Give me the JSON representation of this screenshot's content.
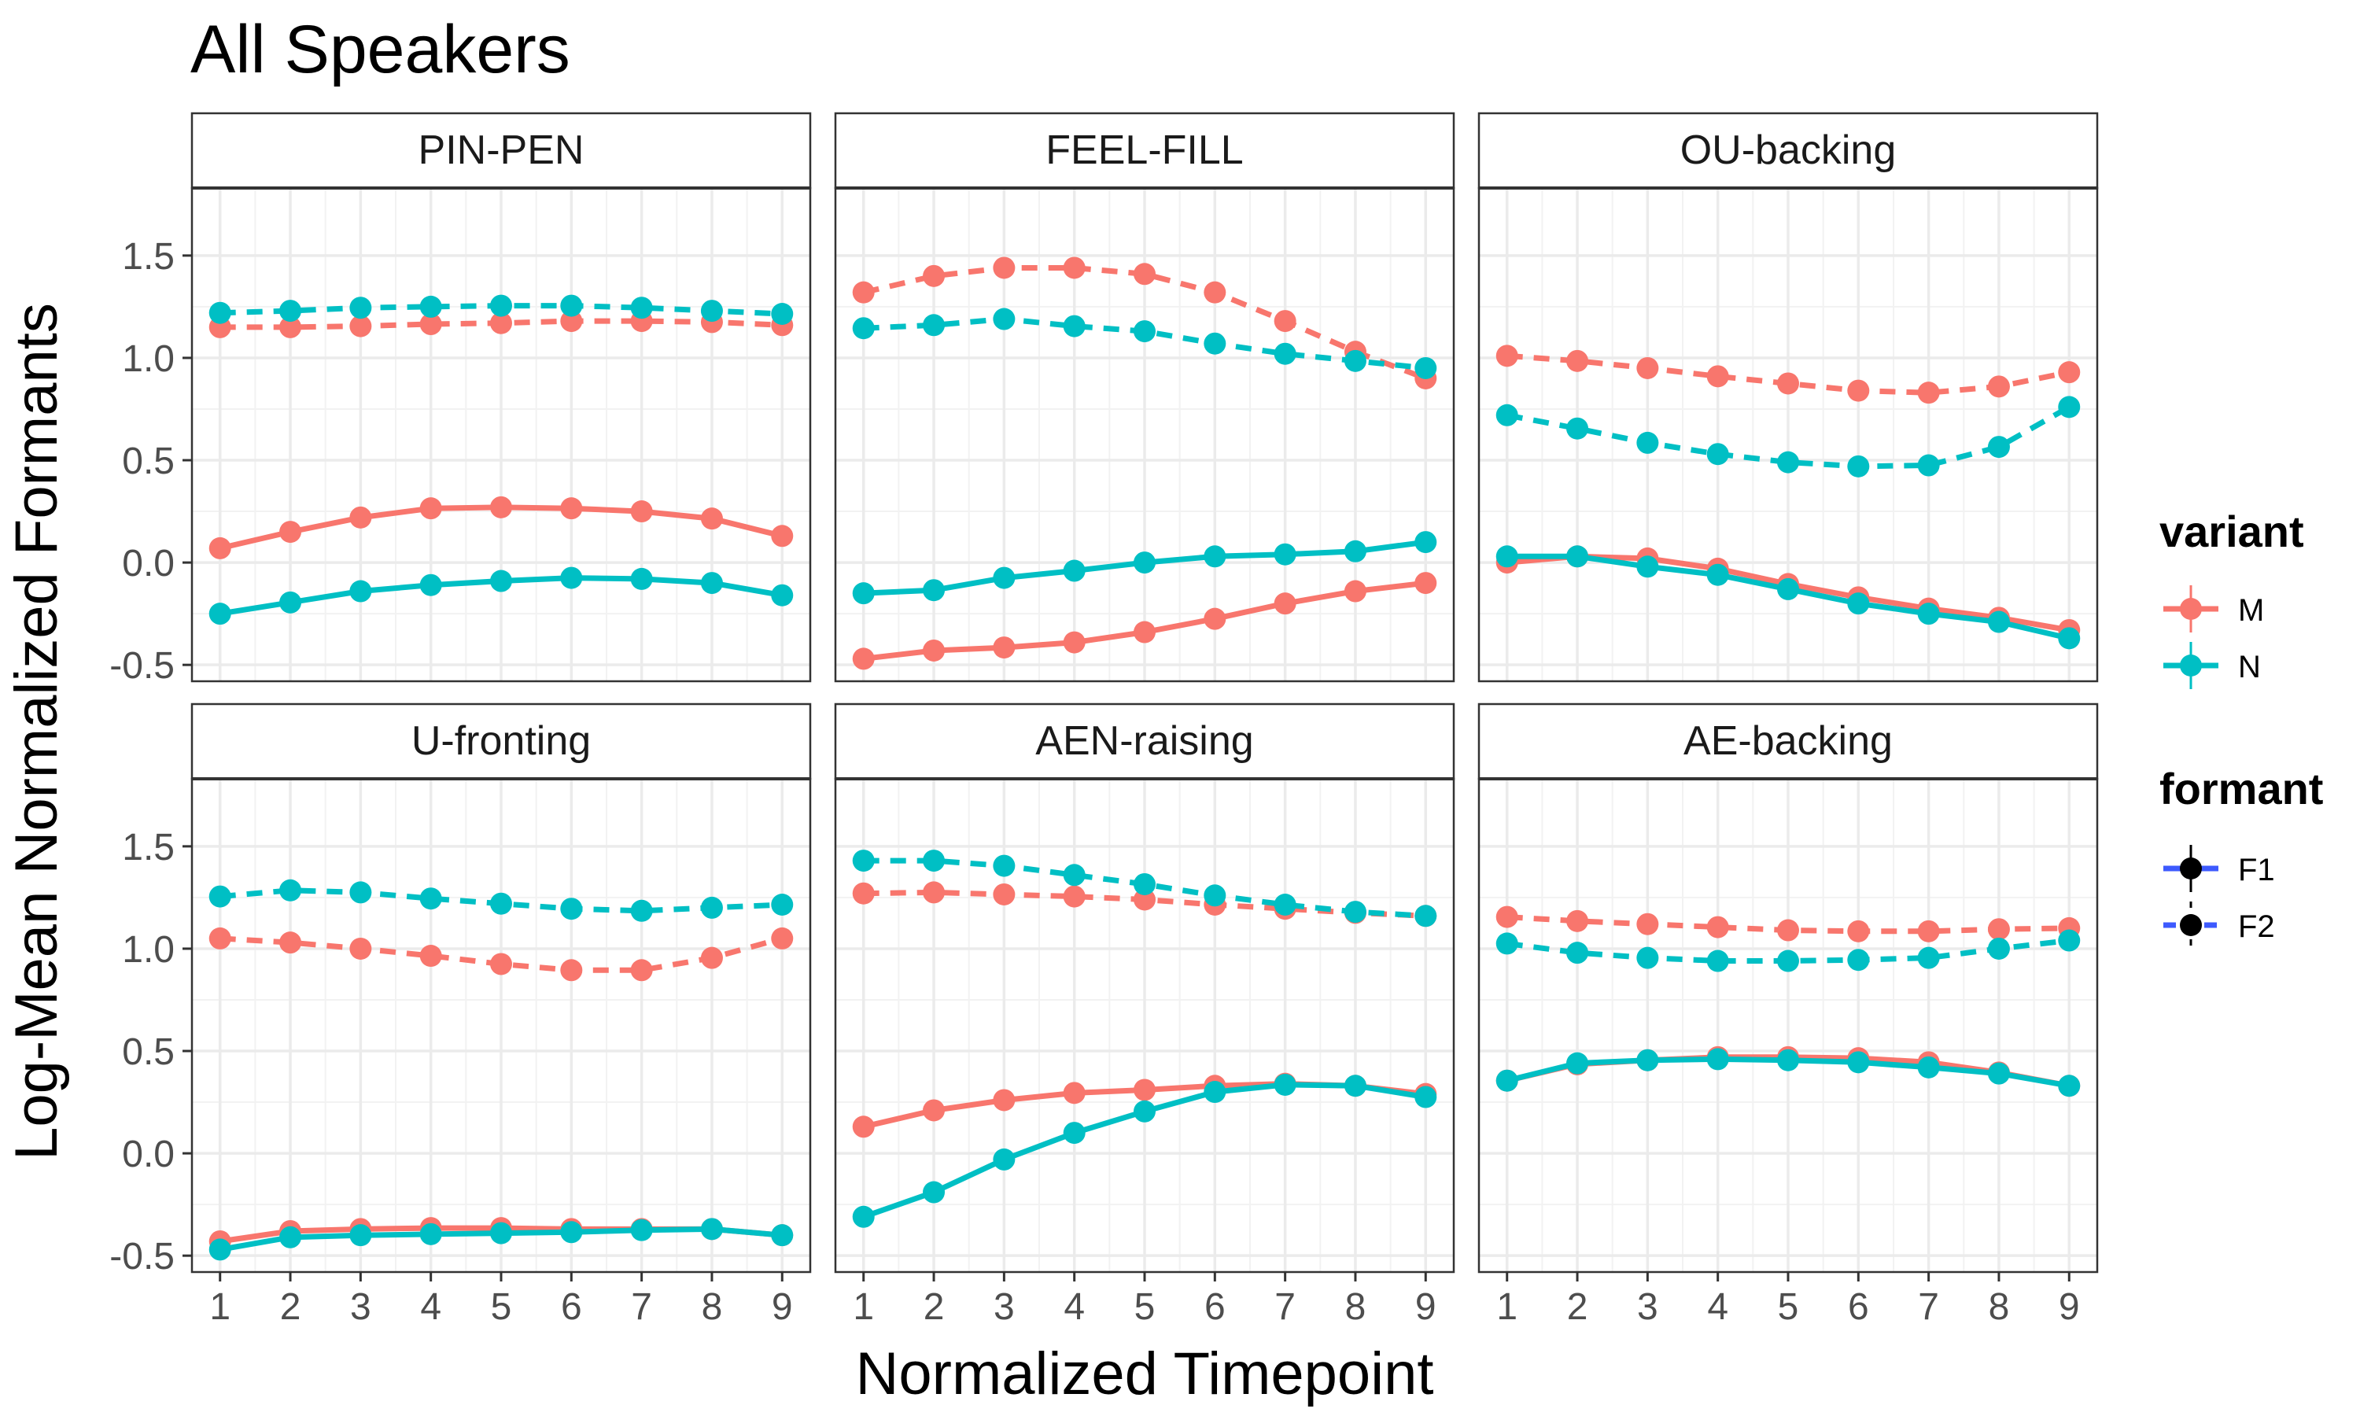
{
  "chart_data": {
    "type": "line",
    "title": "All Speakers",
    "xlabel": "Normalized Timepoint",
    "ylabel": "Log-Mean Normalized Formants",
    "x": [
      1,
      2,
      3,
      4,
      5,
      6,
      7,
      8,
      9
    ],
    "x_ticks": [
      "1",
      "2",
      "3",
      "4",
      "5",
      "6",
      "7",
      "8",
      "9"
    ],
    "ylim": [
      -0.58,
      1.83
    ],
    "y_ticks": [
      "-0.5",
      "0.0",
      "0.5",
      "1.0",
      "1.5"
    ],
    "grid": true,
    "legend_position": "right",
    "colors": {
      "M": "#F8766D",
      "N": "#00BFC4",
      "legend_key": "#3D5AFE"
    },
    "legend": {
      "variant": {
        "title": "variant",
        "items": [
          "M",
          "N"
        ]
      },
      "formant": {
        "title": "formant",
        "items": [
          "F1",
          "F2"
        ]
      }
    },
    "panels": [
      {
        "name": "PIN-PEN",
        "series": [
          {
            "variant": "M",
            "formant": "F1",
            "values": [
              0.07,
              0.15,
              0.22,
              0.265,
              0.27,
              0.265,
              0.25,
              0.215,
              0.13
            ]
          },
          {
            "variant": "N",
            "formant": "F1",
            "values": [
              -0.25,
              -0.195,
              -0.14,
              -0.11,
              -0.09,
              -0.075,
              -0.08,
              -0.1,
              -0.16
            ]
          },
          {
            "variant": "M",
            "formant": "F2",
            "values": [
              1.15,
              1.15,
              1.155,
              1.165,
              1.17,
              1.18,
              1.18,
              1.175,
              1.16
            ]
          },
          {
            "variant": "N",
            "formant": "F2",
            "values": [
              1.22,
              1.23,
              1.245,
              1.25,
              1.255,
              1.255,
              1.245,
              1.23,
              1.215
            ]
          }
        ]
      },
      {
        "name": "FEEL-FILL",
        "series": [
          {
            "variant": "M",
            "formant": "F1",
            "values": [
              -0.47,
              -0.43,
              -0.415,
              -0.39,
              -0.34,
              -0.275,
              -0.2,
              -0.14,
              -0.1
            ]
          },
          {
            "variant": "N",
            "formant": "F1",
            "values": [
              -0.15,
              -0.135,
              -0.075,
              -0.04,
              0.0,
              0.03,
              0.04,
              0.055,
              0.1
            ]
          },
          {
            "variant": "M",
            "formant": "F2",
            "values": [
              1.32,
              1.4,
              1.44,
              1.44,
              1.41,
              1.32,
              1.18,
              1.03,
              0.9
            ]
          },
          {
            "variant": "N",
            "formant": "F2",
            "values": [
              1.145,
              1.16,
              1.19,
              1.155,
              1.13,
              1.07,
              1.02,
              0.985,
              0.95
            ]
          }
        ]
      },
      {
        "name": "OU-backing",
        "series": [
          {
            "variant": "M",
            "formant": "F1",
            "values": [
              0.0,
              0.03,
              0.02,
              -0.03,
              -0.105,
              -0.17,
              -0.225,
              -0.27,
              -0.33
            ]
          },
          {
            "variant": "N",
            "formant": "F1",
            "values": [
              0.03,
              0.03,
              -0.02,
              -0.06,
              -0.13,
              -0.2,
              -0.25,
              -0.29,
              -0.37
            ]
          },
          {
            "variant": "M",
            "formant": "F2",
            "values": [
              1.01,
              0.985,
              0.95,
              0.91,
              0.875,
              0.84,
              0.83,
              0.86,
              0.93
            ]
          },
          {
            "variant": "N",
            "formant": "F2",
            "values": [
              0.72,
              0.655,
              0.585,
              0.53,
              0.49,
              0.47,
              0.475,
              0.565,
              0.76
            ]
          }
        ]
      },
      {
        "name": "U-fronting",
        "series": [
          {
            "variant": "M",
            "formant": "F1",
            "values": [
              -0.43,
              -0.38,
              -0.37,
              -0.365,
              -0.365,
              -0.37,
              -0.37,
              -0.37,
              -0.4
            ]
          },
          {
            "variant": "N",
            "formant": "F1",
            "values": [
              -0.47,
              -0.41,
              -0.4,
              -0.395,
              -0.39,
              -0.385,
              -0.375,
              -0.37,
              -0.4
            ]
          },
          {
            "variant": "M",
            "formant": "F2",
            "values": [
              1.05,
              1.03,
              1.0,
              0.965,
              0.925,
              0.895,
              0.895,
              0.955,
              1.05
            ]
          },
          {
            "variant": "N",
            "formant": "F2",
            "values": [
              1.255,
              1.285,
              1.275,
              1.245,
              1.22,
              1.195,
              1.185,
              1.2,
              1.215
            ]
          }
        ]
      },
      {
        "name": "AEN-raising",
        "series": [
          {
            "variant": "M",
            "formant": "F1",
            "values": [
              0.13,
              0.21,
              0.26,
              0.295,
              0.31,
              0.33,
              0.34,
              0.33,
              0.29
            ]
          },
          {
            "variant": "N",
            "formant": "F1",
            "values": [
              -0.31,
              -0.19,
              -0.03,
              0.1,
              0.205,
              0.3,
              0.335,
              0.33,
              0.275
            ]
          },
          {
            "variant": "M",
            "formant": "F2",
            "values": [
              1.27,
              1.275,
              1.265,
              1.255,
              1.24,
              1.215,
              1.195,
              1.175,
              1.16
            ]
          },
          {
            "variant": "N",
            "formant": "F2",
            "values": [
              1.43,
              1.43,
              1.405,
              1.36,
              1.315,
              1.26,
              1.215,
              1.18,
              1.16
            ]
          }
        ]
      },
      {
        "name": "AE-backing",
        "series": [
          {
            "variant": "M",
            "formant": "F1",
            "values": [
              0.355,
              0.435,
              0.455,
              0.47,
              0.47,
              0.465,
              0.445,
              0.395,
              0.33
            ]
          },
          {
            "variant": "N",
            "formant": "F1",
            "values": [
              0.355,
              0.44,
              0.455,
              0.46,
              0.455,
              0.445,
              0.42,
              0.39,
              0.33
            ]
          },
          {
            "variant": "M",
            "formant": "F2",
            "values": [
              1.155,
              1.135,
              1.12,
              1.105,
              1.09,
              1.085,
              1.085,
              1.095,
              1.1
            ]
          },
          {
            "variant": "N",
            "formant": "F2",
            "values": [
              1.025,
              0.98,
              0.955,
              0.94,
              0.94,
              0.945,
              0.955,
              1.0,
              1.04
            ]
          }
        ]
      }
    ]
  }
}
